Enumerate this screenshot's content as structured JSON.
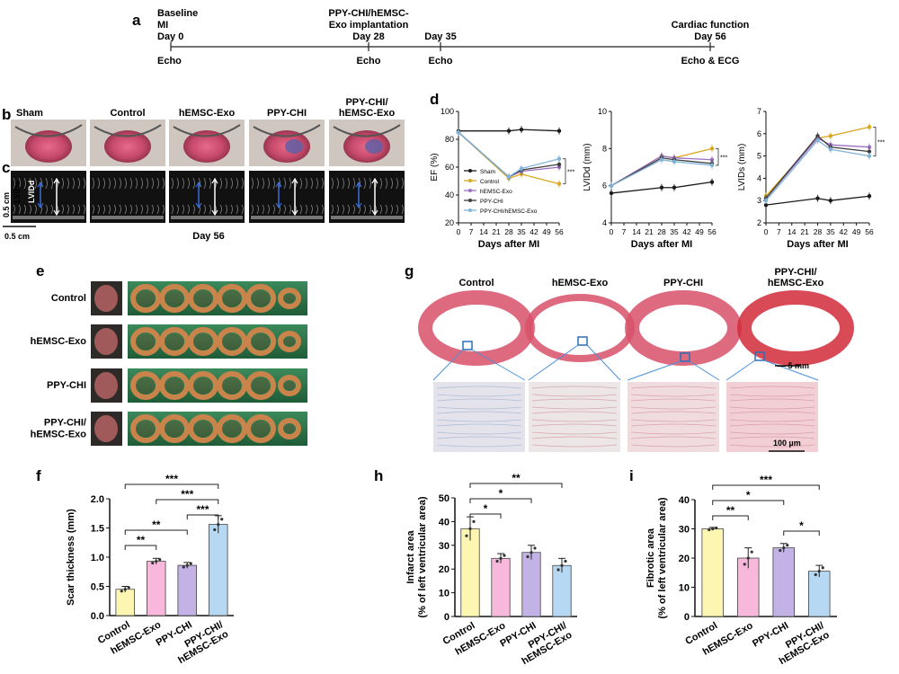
{
  "panels": {
    "a": "a",
    "b": "b",
    "c": "c",
    "d": "d",
    "e": "e",
    "f": "f",
    "g": "g",
    "h": "h",
    "i": "i"
  },
  "timeline": {
    "events": [
      {
        "above": [
          "Baseline",
          "MI",
          "Day 0"
        ],
        "below": "Echo",
        "day": 0
      },
      {
        "above": [
          "PPY-CHI/hEMSC-",
          "Exo implantation",
          "Day 28"
        ],
        "below": "Echo",
        "day": 28
      },
      {
        "above": [
          "Day 35"
        ],
        "below": "Echo",
        "day": 35
      },
      {
        "above": [
          "Cardiac function",
          "Day 56"
        ],
        "below": "Echo & ECG",
        "day": 56
      }
    ]
  },
  "photo_b": {
    "labels": [
      "Sham",
      "Control",
      "hEMSC-Exo",
      "PPY-CHI",
      "PPY-CHI/\nhEMSC-Exo"
    ]
  },
  "echo_c": {
    "lvids": "LVIDs",
    "lvidd": "LVIDd",
    "scale_v": "0.5 cm",
    "scale_h": "0.5 cm",
    "day": "Day 56"
  },
  "photo_e": {
    "rows": [
      "Control",
      "hEMSC-Exo",
      "PPY-CHI",
      "PPY-CHI/\nhEMSC-Exo"
    ]
  },
  "histology_g": {
    "cols": [
      "Control",
      "hEMSC-Exo",
      "PPY-CHI",
      "PPY-CHI/\nhEMSC-Exo"
    ],
    "scale_top": "5 mm",
    "scale_bottom": "100 µm"
  },
  "colors": {
    "sham": "#1a1a1a",
    "control": "#d9a61c",
    "hemsc": "#9b6fc4",
    "ppy": "#3d3d3d",
    "combo": "#7fb3d9",
    "bar_yellow": "#fdf6b2",
    "bar_pink": "#f8b8dc",
    "bar_purple": "#c3b2e6",
    "bar_blue": "#b7d8f2"
  },
  "chart_data": [
    {
      "id": "d_ef",
      "type": "line",
      "ylabel": "EF (%)",
      "xlabel": "Days after MI",
      "xticks": [
        0,
        7,
        14,
        21,
        28,
        35,
        42,
        49,
        56
      ],
      "ylim": [
        20,
        100
      ],
      "yticks": [
        20,
        40,
        60,
        80,
        100
      ],
      "legend": [
        "Sham",
        "Control",
        "hEMSC-Exo",
        "PPY-CHI",
        "PPY-CHI/hEMSC-Exo"
      ],
      "series": [
        {
          "name": "Sham",
          "x": [
            0,
            28,
            35,
            56
          ],
          "y": [
            86,
            86,
            87,
            86
          ]
        },
        {
          "name": "Control",
          "x": [
            0,
            28,
            35,
            56
          ],
          "y": [
            85,
            52,
            55,
            48
          ]
        },
        {
          "name": "hEMSC-Exo",
          "x": [
            0,
            28,
            35,
            56
          ],
          "y": [
            85,
            53,
            57,
            60
          ]
        },
        {
          "name": "PPY-CHI",
          "x": [
            0,
            28,
            35,
            56
          ],
          "y": [
            85,
            53,
            58,
            62
          ]
        },
        {
          "name": "PPY-CHI/hEMSC-Exo",
          "x": [
            0,
            28,
            35,
            56
          ],
          "y": [
            85,
            53,
            59,
            66
          ]
        }
      ]
    },
    {
      "id": "d_lvidd",
      "type": "line",
      "ylabel": "LVIDd (mm)",
      "xlabel": "Days after MI",
      "xticks": [
        0,
        7,
        14,
        21,
        28,
        35,
        42,
        49,
        56
      ],
      "ylim": [
        4,
        10
      ],
      "yticks": [
        4,
        6,
        8,
        10
      ],
      "series": [
        {
          "name": "Sham",
          "x": [
            0,
            28,
            35,
            56
          ],
          "y": [
            5.6,
            5.9,
            5.9,
            6.2
          ]
        },
        {
          "name": "Control",
          "x": [
            0,
            28,
            35,
            56
          ],
          "y": [
            6.0,
            7.6,
            7.5,
            8.0
          ]
        },
        {
          "name": "hEMSC-Exo",
          "x": [
            0,
            28,
            35,
            56
          ],
          "y": [
            6.0,
            7.6,
            7.5,
            7.4
          ]
        },
        {
          "name": "PPY-CHI",
          "x": [
            0,
            28,
            35,
            56
          ],
          "y": [
            6.0,
            7.5,
            7.4,
            7.2
          ]
        },
        {
          "name": "PPY-CHI/hEMSC-Exo",
          "x": [
            0,
            28,
            35,
            56
          ],
          "y": [
            6.0,
            7.4,
            7.3,
            7.1
          ]
        }
      ]
    },
    {
      "id": "d_lvids",
      "type": "line",
      "ylabel": "LVIDs (mm)",
      "xlabel": "Days after MI",
      "xticks": [
        0,
        7,
        14,
        21,
        28,
        35,
        42,
        49,
        56
      ],
      "ylim": [
        2,
        7
      ],
      "yticks": [
        2,
        3,
        4,
        5,
        6,
        7
      ],
      "series": [
        {
          "name": "Sham",
          "x": [
            0,
            28,
            35,
            56
          ],
          "y": [
            2.8,
            3.1,
            3.0,
            3.2
          ]
        },
        {
          "name": "Control",
          "x": [
            0,
            28,
            35,
            56
          ],
          "y": [
            3.2,
            5.8,
            5.9,
            6.3
          ]
        },
        {
          "name": "hEMSC-Exo",
          "x": [
            0,
            28,
            35,
            56
          ],
          "y": [
            3.1,
            5.8,
            5.5,
            5.4
          ]
        },
        {
          "name": "PPY-CHI",
          "x": [
            0,
            28,
            35,
            56
          ],
          "y": [
            3.1,
            5.9,
            5.4,
            5.2
          ]
        },
        {
          "name": "PPY-CHI/hEMSC-Exo",
          "x": [
            0,
            28,
            35,
            56
          ],
          "y": [
            3.0,
            5.7,
            5.3,
            5.0
          ]
        }
      ]
    },
    {
      "id": "f",
      "type": "bar",
      "ylabel": "Scar thickness (mm)",
      "categories": [
        "Control",
        "hEMSC-Exo",
        "PPY-CHI",
        "PPY-CHI/\nhEMSC-Exo"
      ],
      "values": [
        0.45,
        0.93,
        0.86,
        1.56
      ],
      "errors": [
        0.05,
        0.05,
        0.05,
        0.15
      ],
      "ylim": [
        0,
        2.0
      ],
      "yticks": [
        0.0,
        0.5,
        1.0,
        1.5,
        2.0
      ],
      "sig": [
        {
          "a": 0,
          "b": 3,
          "label": "***"
        },
        {
          "a": 1,
          "b": 3,
          "label": "***"
        },
        {
          "a": 2,
          "b": 3,
          "label": "***"
        },
        {
          "a": 0,
          "b": 2,
          "label": "**"
        },
        {
          "a": 0,
          "b": 1,
          "label": "**"
        }
      ]
    },
    {
      "id": "h",
      "type": "bar",
      "ylabel": "Infarct area\n(% of left ventricular area)",
      "categories": [
        "Control",
        "hEMSC-Exo",
        "PPY-CHI",
        "PPY-CHI/\nhEMSC-Exo"
      ],
      "values": [
        37,
        24.5,
        27,
        21.5
      ],
      "errors": [
        5,
        2,
        3,
        3
      ],
      "ylim": [
        0,
        50
      ],
      "yticks": [
        0,
        10,
        20,
        30,
        40,
        50
      ],
      "sig": [
        {
          "a": 0,
          "b": 3,
          "label": "**"
        },
        {
          "a": 0,
          "b": 2,
          "label": "*"
        },
        {
          "a": 0,
          "b": 1,
          "label": "*"
        }
      ]
    },
    {
      "id": "i",
      "type": "bar",
      "ylabel": "Fibrotic area\n(% of left ventricular area)",
      "categories": [
        "Control",
        "hEMSC-Exo",
        "PPY-CHI",
        "PPY-CHI/\nhEMSC-Exo"
      ],
      "values": [
        30,
        20,
        23.5,
        15.5
      ],
      "errors": [
        0.5,
        3.5,
        1.5,
        2
      ],
      "ylim": [
        0,
        40
      ],
      "yticks": [
        0,
        10,
        20,
        30,
        40
      ],
      "sig": [
        {
          "a": 0,
          "b": 3,
          "label": "***"
        },
        {
          "a": 0,
          "b": 2,
          "label": "*"
        },
        {
          "a": 0,
          "b": 1,
          "label": "**"
        },
        {
          "a": 2,
          "b": 3,
          "label": "*"
        }
      ]
    }
  ]
}
